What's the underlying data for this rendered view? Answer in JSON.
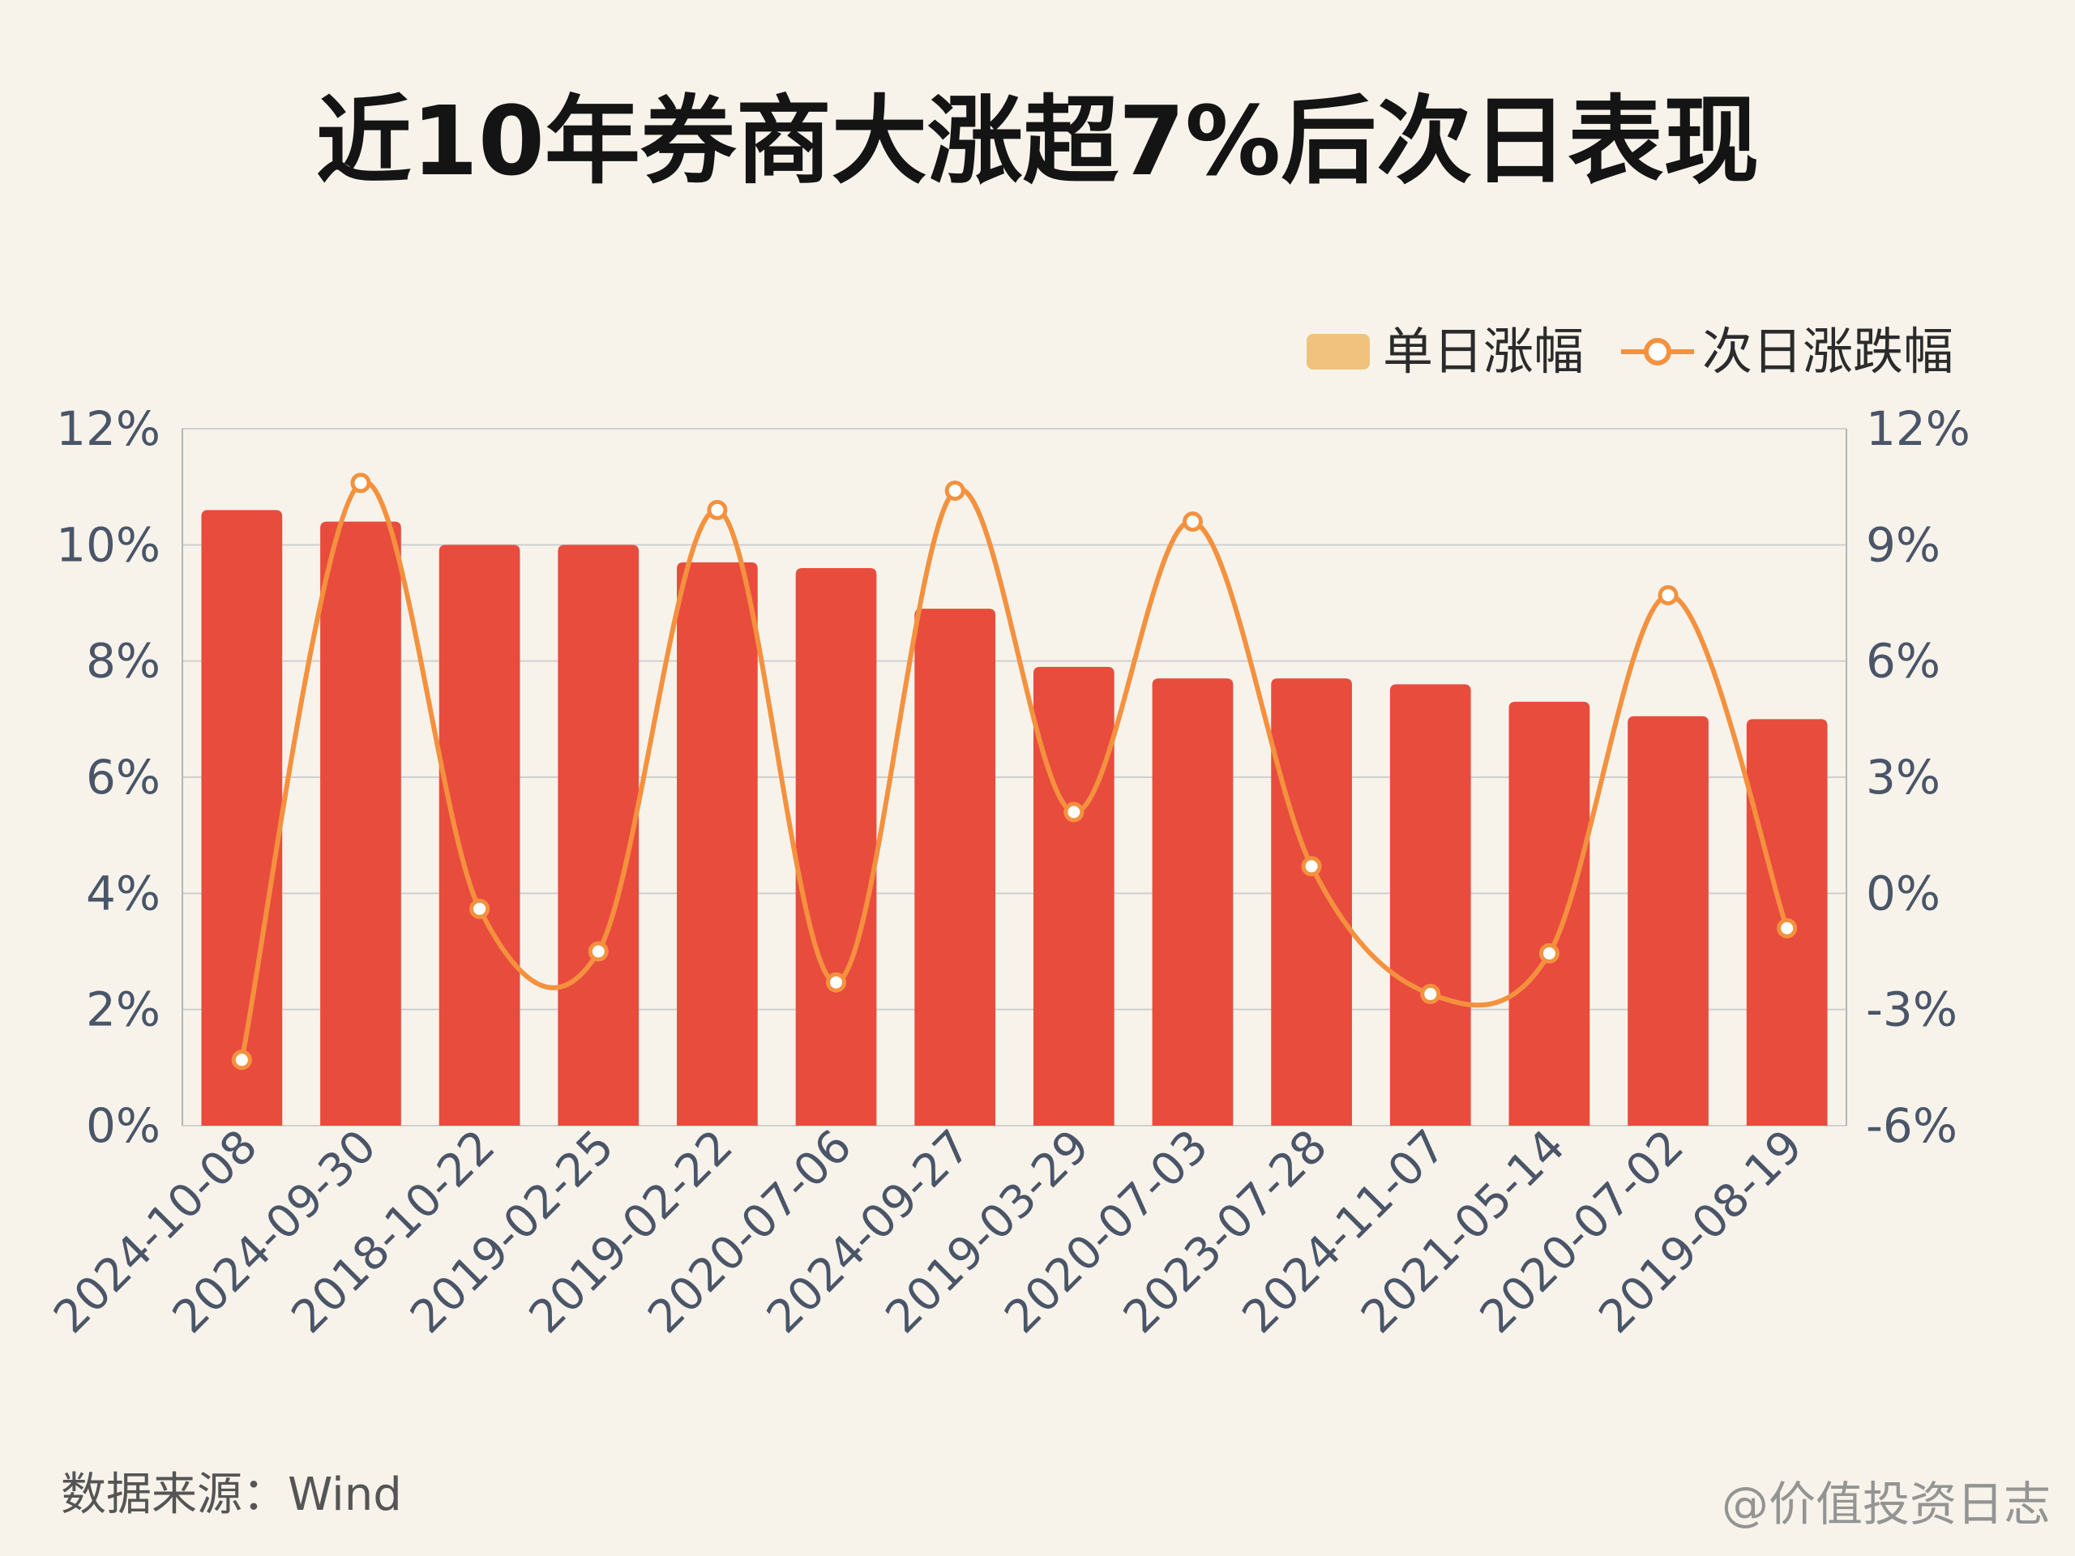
{
  "colors": {
    "background": "#f7f3eb",
    "bar": "#e84c3d",
    "line": "#f4913e",
    "legend_bar": "#f0c27e",
    "grid": "#cfcfcf"
  },
  "footer": {
    "source": "数据来源：Wind",
    "watermark": "@价值投资日志"
  },
  "chart_data": {
    "type": "bar",
    "title": "近10年券商大涨超7%后次日表现",
    "categories": [
      "2024-10-08",
      "2024-09-30",
      "2018-10-22",
      "2019-02-25",
      "2019-02-22",
      "2020-07-06",
      "2024-09-27",
      "2019-03-29",
      "2020-07-03",
      "2023-07-28",
      "2024-11-07",
      "2021-05-14",
      "2020-07-02",
      "2019-08-19"
    ],
    "series": [
      {
        "name": "单日涨幅",
        "type": "bar",
        "axis": "left",
        "values": [
          10.6,
          10.4,
          10.0,
          10.0,
          9.7,
          9.6,
          8.9,
          7.9,
          7.7,
          7.7,
          7.6,
          7.3,
          7.05,
          7.0
        ]
      },
      {
        "name": "次日涨跌幅",
        "type": "line",
        "axis": "right",
        "values": [
          -4.3,
          10.6,
          -0.4,
          -1.5,
          9.9,
          -2.3,
          10.4,
          2.1,
          9.6,
          0.7,
          -2.6,
          -1.55,
          7.7,
          -0.9
        ]
      }
    ],
    "y_left": {
      "min": 0,
      "max": 12,
      "ticks": [
        "0%",
        "2%",
        "4%",
        "6%",
        "8%",
        "10%",
        "12%"
      ]
    },
    "y_right": {
      "min": -6,
      "max": 12,
      "ticks": [
        "-6%",
        "-3%",
        "0%",
        "3%",
        "6%",
        "9%",
        "12%"
      ]
    },
    "legend_position": "top-right",
    "grid": true
  }
}
